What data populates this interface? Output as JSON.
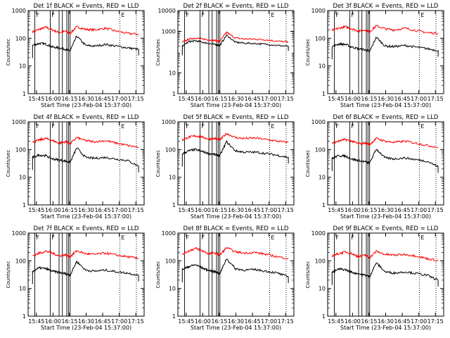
{
  "chart_data": [
    {
      "type": "line",
      "title": "Det 1f BLACK = Events, RED = LLD",
      "xlabel": "Start Time (23-Feb-04 15:37:00)",
      "ylabel": "Counts/sec",
      "x_ticks": [
        "15:45",
        "16:00",
        "16:15",
        "16:30",
        "16:45",
        "17:00",
        "17:15"
      ],
      "y_ticks": [
        "1",
        "10",
        "100",
        "1000"
      ],
      "xlim_minutes_from_start": [
        0,
        105
      ],
      "ylim": [
        1,
        1000
      ],
      "y_scale": "log",
      "flag_labels": [
        "F",
        "F",
        "E"
      ],
      "series": [
        {
          "color": "#ff0000",
          "x": [
            4,
            10,
            16,
            22,
            28,
            34,
            38,
            44,
            52,
            60,
            70,
            80,
            90,
            100
          ],
          "y": [
            170,
            210,
            250,
            200,
            160,
            180,
            150,
            260,
            210,
            200,
            230,
            180,
            150,
            140
          ]
        },
        {
          "color": "#000000",
          "x": [
            4,
            10,
            16,
            22,
            28,
            34,
            38,
            44,
            52,
            60,
            70,
            80,
            90,
            100
          ],
          "y": [
            55,
            65,
            62,
            48,
            45,
            40,
            35,
            120,
            55,
            52,
            60,
            52,
            45,
            40
          ]
        }
      ]
    },
    {
      "type": "line",
      "title": "Det 2f BLACK = Events, RED = LLD",
      "xlabel": "Start Time (23-Feb-04 15:37:00)",
      "ylabel": "Counts/sec",
      "x_ticks": [
        "15:45",
        "16:00",
        "16:15",
        "16:30",
        "16:45",
        "17:00",
        "17:15"
      ],
      "y_ticks": [
        "1",
        "10",
        "1000",
        "10000"
      ],
      "xlim_minutes_from_start": [
        0,
        105
      ],
      "ylim": [
        1,
        10000
      ],
      "y_scale": "log",
      "flag_labels": [
        "F",
        "F",
        "E"
      ],
      "series": [
        {
          "color": "#ff0000",
          "x": [
            4,
            10,
            16,
            22,
            28,
            34,
            38,
            44,
            52,
            60,
            70,
            80,
            90,
            100
          ],
          "y": [
            300,
            420,
            480,
            430,
            390,
            360,
            330,
            900,
            480,
            430,
            420,
            390,
            340,
            300
          ]
        },
        {
          "color": "#000000",
          "x": [
            4,
            10,
            16,
            22,
            28,
            34,
            38,
            44,
            52,
            60,
            70,
            80,
            90,
            100
          ],
          "y": [
            200,
            320,
            350,
            300,
            260,
            230,
            210,
            650,
            300,
            270,
            260,
            240,
            210,
            190
          ]
        }
      ]
    },
    {
      "type": "line",
      "title": "Det 3f BLACK = Events, RED = LLD",
      "xlabel": "Start Time (23-Feb-04 15:37:00)",
      "ylabel": "Counts/sec",
      "x_ticks": [
        "15:45",
        "16:00",
        "16:15",
        "16:30",
        "16:45",
        "17:00",
        "17:15"
      ],
      "y_ticks": [
        "1",
        "10",
        "100",
        "1000"
      ],
      "xlim_minutes_from_start": [
        0,
        105
      ],
      "ylim": [
        1,
        1000
      ],
      "y_scale": "log",
      "flag_labels": [
        "F",
        "F",
        "E"
      ],
      "series": [
        {
          "color": "#ff0000",
          "x": [
            4,
            10,
            16,
            22,
            28,
            34,
            38,
            44,
            52,
            60,
            70,
            80,
            90,
            100
          ],
          "y": [
            190,
            230,
            260,
            220,
            180,
            200,
            170,
            280,
            220,
            200,
            230,
            190,
            160,
            150
          ]
        },
        {
          "color": "#000000",
          "x": [
            4,
            10,
            16,
            22,
            28,
            34,
            38,
            44,
            52,
            60,
            70,
            80,
            90,
            100
          ],
          "y": [
            50,
            62,
            60,
            48,
            42,
            38,
            33,
            110,
            52,
            50,
            55,
            48,
            42,
            36
          ]
        }
      ]
    },
    {
      "type": "line",
      "title": "Det 4f BLACK = Events, RED = LLD",
      "xlabel": "Start Time (23-Feb-04 15:37:00)",
      "ylabel": "Counts/sec",
      "x_ticks": [
        "15:45",
        "16:00",
        "16:15",
        "16:30",
        "16:45",
        "17:00",
        "17:15"
      ],
      "y_ticks": [
        "1",
        "10",
        "100",
        "1000"
      ],
      "xlim_minutes_from_start": [
        0,
        105
      ],
      "ylim": [
        1,
        1000
      ],
      "y_scale": "log",
      "flag_labels": [
        "F",
        "F",
        "E"
      ],
      "series": [
        {
          "color": "#ff0000",
          "x": [
            4,
            10,
            16,
            22,
            28,
            34,
            38,
            44,
            52,
            60,
            70,
            80,
            90,
            100
          ],
          "y": [
            180,
            220,
            250,
            210,
            170,
            190,
            160,
            270,
            210,
            190,
            210,
            170,
            140,
            120
          ]
        },
        {
          "color": "#000000",
          "x": [
            4,
            10,
            16,
            22,
            28,
            34,
            38,
            44,
            52,
            60,
            70,
            80,
            90,
            100
          ],
          "y": [
            52,
            63,
            60,
            46,
            42,
            38,
            34,
            115,
            52,
            48,
            52,
            45,
            40,
            25
          ]
        }
      ]
    },
    {
      "type": "line",
      "title": "Det 5f BLACK = Events, RED = LLD",
      "xlabel": "Start Time (23-Feb-04 15:37:00)",
      "ylabel": "Counts/sec",
      "x_ticks": [
        "15:45",
        "16:00",
        "16:15",
        "16:30",
        "16:45",
        "17:00",
        "17:15"
      ],
      "y_ticks": [
        "1",
        "10",
        "100",
        "1000"
      ],
      "xlim_minutes_from_start": [
        0,
        105
      ],
      "ylim": [
        1,
        1000
      ],
      "y_scale": "log",
      "flag_labels": [
        "F",
        "F",
        "E"
      ],
      "series": [
        {
          "color": "#ff0000",
          "x": [
            4,
            10,
            16,
            22,
            28,
            34,
            38,
            44,
            52,
            60,
            70,
            80,
            90,
            100
          ],
          "y": [
            220,
            280,
            310,
            280,
            240,
            250,
            220,
            380,
            270,
            250,
            260,
            230,
            200,
            180
          ]
        },
        {
          "color": "#000000",
          "x": [
            4,
            10,
            16,
            22,
            28,
            34,
            38,
            44,
            52,
            60,
            70,
            80,
            90,
            100
          ],
          "y": [
            70,
            90,
            100,
            85,
            72,
            65,
            60,
            190,
            90,
            80,
            80,
            72,
            62,
            52
          ]
        }
      ]
    },
    {
      "type": "line",
      "title": "Det 6f BLACK = Events, RED = LLD",
      "xlabel": "Start Time (23-Feb-04 15:37:00)",
      "ylabel": "Counts/sec",
      "x_ticks": [
        "15:45",
        "16:00",
        "16:15",
        "16:30",
        "16:45",
        "17:00",
        "17:15"
      ],
      "y_ticks": [
        "1",
        "10",
        "100",
        "1000"
      ],
      "xlim_minutes_from_start": [
        0,
        105
      ],
      "ylim": [
        1,
        1000
      ],
      "y_scale": "log",
      "flag_labels": [
        "F",
        "F",
        "E"
      ],
      "series": [
        {
          "color": "#ff0000",
          "x": [
            4,
            10,
            16,
            22,
            28,
            34,
            38,
            44,
            52,
            60,
            70,
            80,
            90,
            100
          ],
          "y": [
            170,
            200,
            230,
            200,
            160,
            175,
            150,
            250,
            200,
            180,
            200,
            170,
            140,
            120
          ]
        },
        {
          "color": "#000000",
          "x": [
            4,
            10,
            16,
            22,
            28,
            34,
            38,
            44,
            52,
            60,
            70,
            80,
            90,
            100
          ],
          "y": [
            48,
            60,
            58,
            45,
            40,
            36,
            32,
            105,
            50,
            46,
            50,
            43,
            38,
            24
          ]
        }
      ]
    },
    {
      "type": "line",
      "title": "Det 7f BLACK = Events, RED = LLD",
      "xlabel": "Start Time (23-Feb-04 15:37:00)",
      "ylabel": "Counts/sec",
      "x_ticks": [
        "15:45",
        "16:00",
        "16:15",
        "16:30",
        "16:45",
        "17:00",
        "17:15"
      ],
      "y_ticks": [
        "1",
        "10",
        "100",
        "1000"
      ],
      "xlim_minutes_from_start": [
        0,
        105
      ],
      "ylim": [
        1,
        1000
      ],
      "y_scale": "log",
      "flag_labels": [
        "F",
        "F",
        "E"
      ],
      "series": [
        {
          "color": "#ff0000",
          "x": [
            4,
            10,
            16,
            22,
            28,
            34,
            38,
            44,
            52,
            60,
            70,
            80,
            90,
            100
          ],
          "y": [
            150,
            190,
            220,
            190,
            150,
            165,
            140,
            230,
            180,
            170,
            190,
            160,
            140,
            120
          ]
        },
        {
          "color": "#000000",
          "x": [
            4,
            10,
            16,
            22,
            28,
            34,
            38,
            44,
            52,
            60,
            70,
            80,
            90,
            100
          ],
          "y": [
            42,
            55,
            52,
            42,
            38,
            34,
            30,
            95,
            46,
            42,
            46,
            40,
            36,
            30
          ]
        }
      ]
    },
    {
      "type": "line",
      "title": "Det 8f BLACK = Events, RED = LLD",
      "xlabel": "Start Time (23-Feb-04 15:37:00)",
      "ylabel": "Counts/sec",
      "x_ticks": [
        "15:45",
        "16:00",
        "16:15",
        "16:30",
        "16:45",
        "17:00",
        "17:15"
      ],
      "y_ticks": [
        "1",
        "10",
        "100",
        "1000"
      ],
      "xlim_minutes_from_start": [
        0,
        105
      ],
      "ylim": [
        1,
        1000
      ],
      "y_scale": "log",
      "flag_labels": [
        "F",
        "F",
        "E"
      ],
      "series": [
        {
          "color": "#ff0000",
          "x": [
            4,
            10,
            16,
            22,
            28,
            34,
            38,
            44,
            52,
            60,
            70,
            80,
            90,
            100
          ],
          "y": [
            170,
            230,
            280,
            230,
            180,
            190,
            160,
            300,
            210,
            190,
            200,
            170,
            140,
            120
          ]
        },
        {
          "color": "#000000",
          "x": [
            4,
            10,
            16,
            22,
            28,
            34,
            38,
            44,
            52,
            60,
            70,
            80,
            90,
            100
          ],
          "y": [
            48,
            62,
            72,
            55,
            45,
            40,
            34,
            120,
            52,
            46,
            48,
            42,
            36,
            26
          ]
        }
      ]
    },
    {
      "type": "line",
      "title": "Det 9f BLACK = Events, RED = LLD",
      "xlabel": "Start Time (23-Feb-04 15:37:00)",
      "ylabel": "Counts/sec",
      "x_ticks": [
        "15:45",
        "16:00",
        "16:15",
        "16:30",
        "16:45",
        "17:00",
        "17:15"
      ],
      "y_ticks": [
        "1",
        "10",
        "100",
        "1000"
      ],
      "xlim_minutes_from_start": [
        0,
        105
      ],
      "ylim": [
        1,
        1000
      ],
      "y_scale": "log",
      "flag_labels": [
        "F",
        "F",
        "E"
      ],
      "series": [
        {
          "color": "#ff0000",
          "x": [
            4,
            10,
            16,
            22,
            28,
            34,
            38,
            44,
            52,
            60,
            70,
            80,
            90,
            100
          ],
          "y": [
            150,
            180,
            210,
            180,
            140,
            160,
            130,
            220,
            170,
            160,
            170,
            150,
            120,
            100
          ]
        },
        {
          "color": "#000000",
          "x": [
            4,
            10,
            16,
            22,
            28,
            34,
            38,
            44,
            52,
            60,
            70,
            80,
            90,
            100
          ],
          "y": [
            38,
            50,
            48,
            38,
            34,
            30,
            27,
            85,
            40,
            36,
            40,
            35,
            30,
            20
          ]
        }
      ]
    }
  ],
  "colors": {
    "lld": "#ff0000",
    "events": "#000000",
    "background": "#ffffff"
  }
}
